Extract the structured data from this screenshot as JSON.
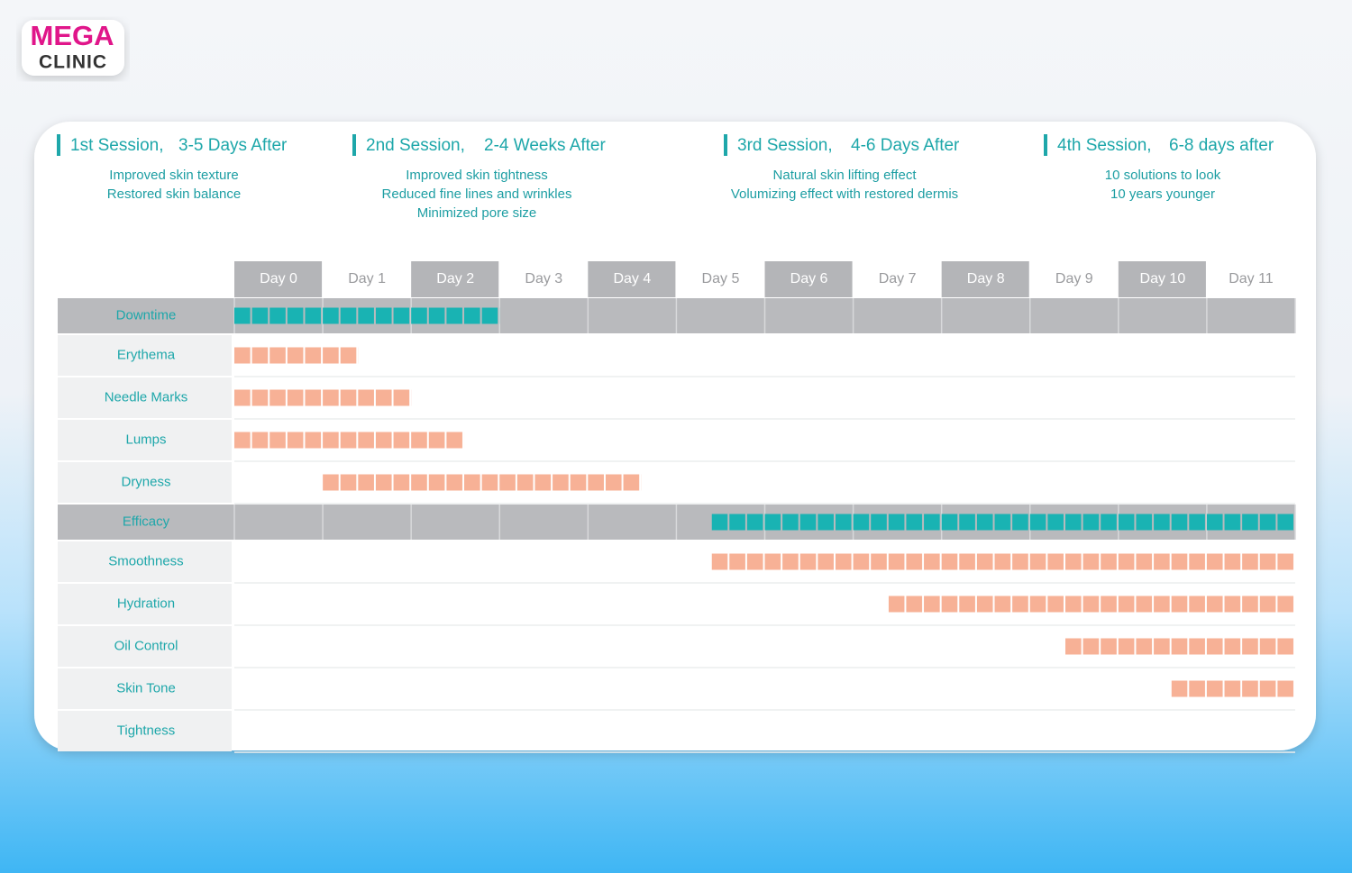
{
  "logo": {
    "top": "MEGA",
    "bottom": "CLINIC"
  },
  "sessions": [
    {
      "title": "1st Session,",
      "timing": "3-5 Days After",
      "lines": [
        "Improved skin texture",
        "Restored skin balance"
      ]
    },
    {
      "title": "2nd Session,",
      "timing": "2-4 Weeks After",
      "lines": [
        "Improved skin tightness",
        "Reduced fine lines and wrinkles",
        "Minimized pore size"
      ]
    },
    {
      "title": "3rd Session,",
      "timing": "4-6 Days After",
      "lines": [
        "Natural skin lifting effect",
        "Volumizing effect with restored dermis"
      ]
    },
    {
      "title": "4th Session,",
      "timing": "6-8 days after",
      "lines": [
        "10 solutions to look",
        "10 years younger"
      ]
    }
  ],
  "chart_data": {
    "type": "timeline",
    "categories": [
      "Day 0",
      "Day 1",
      "Day 2",
      "Day 3",
      "Day 4",
      "Day 5",
      "Day 6",
      "Day 7",
      "Day 8",
      "Day 9",
      "Day 10",
      "Day 11"
    ],
    "xlim": [
      0,
      12
    ],
    "header_color": "#19b3b3",
    "bar_color": "#f7b196",
    "rows": [
      {
        "name": "Downtime",
        "start": 0,
        "end": 3,
        "header": true
      },
      {
        "name": "Erythema",
        "start": 0,
        "end": 1.4
      },
      {
        "name": "Needle Marks",
        "start": 0,
        "end": 2
      },
      {
        "name": "Lumps",
        "start": 0,
        "end": 2.6
      },
      {
        "name": "Dryness",
        "start": 1,
        "end": 4.6
      },
      {
        "name": "Efficacy",
        "start": 5.4,
        "end": 12,
        "header": true
      },
      {
        "name": "Smoothness",
        "start": 5.4,
        "end": 12
      },
      {
        "name": "Hydration",
        "start": 7.4,
        "end": 12
      },
      {
        "name": "Oil Control",
        "start": 9.4,
        "end": 12
      },
      {
        "name": "Skin Tone",
        "start": 10.6,
        "end": 12
      },
      {
        "name": "Tightness",
        "start": null,
        "end": null
      }
    ]
  }
}
